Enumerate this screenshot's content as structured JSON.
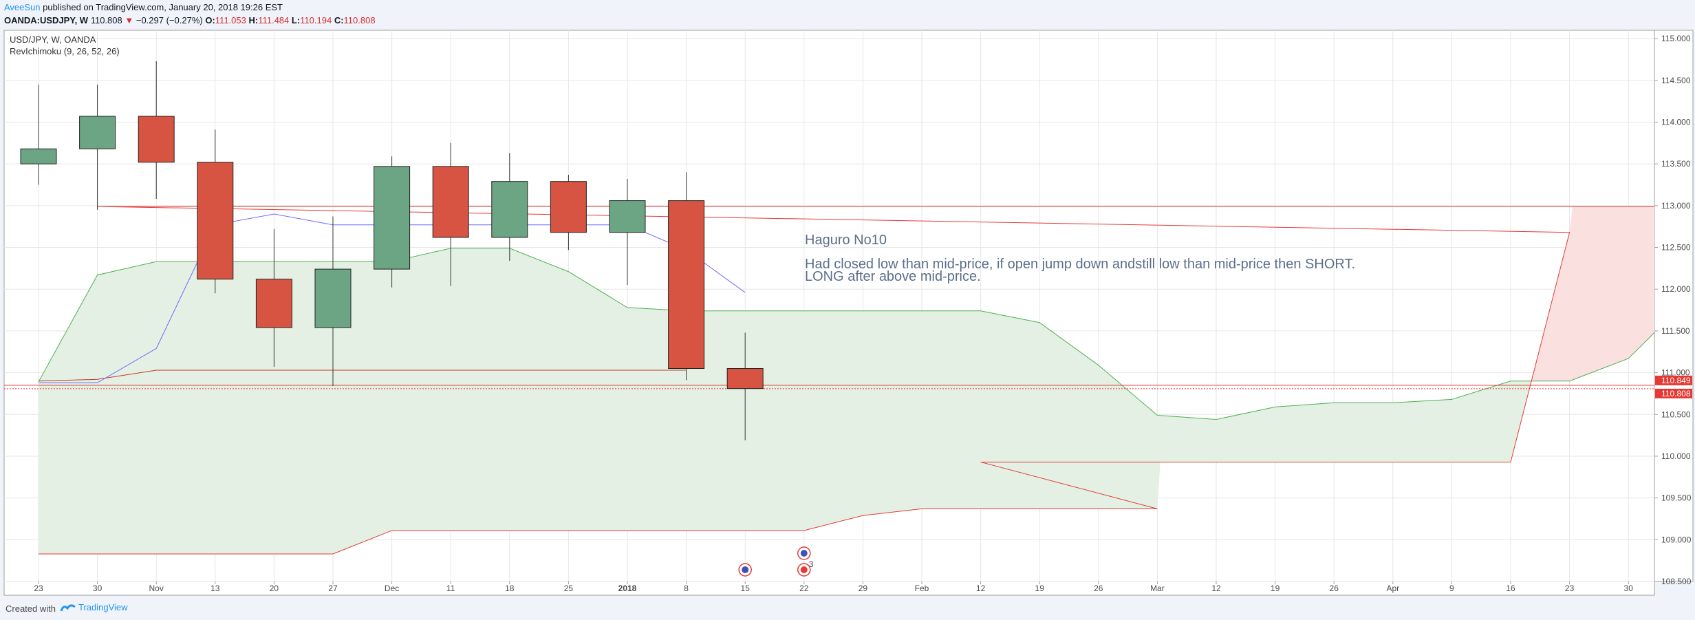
{
  "header": {
    "author": "AveeSun",
    "published_text": "published on TradingView.com, January 20, 2018 19:26 EST",
    "symbol": "OANDA:USDJPY, W",
    "last_price": "110.808",
    "change": "−0.297 (−0.27%)",
    "o_label": "O:",
    "o_value": "111.053",
    "h_label": "H:",
    "h_value": "111.484",
    "l_label": "L:",
    "l_value": "110.194",
    "c_label": "C:",
    "c_value": "110.808"
  },
  "footer": {
    "created_with": "Created with",
    "brand": "TradingView"
  },
  "chart_data": {
    "type": "candlestick",
    "legend": [
      "USD/JPY, W, OANDA",
      "RevIchimoku (9, 26, 52, 26)"
    ],
    "x_tick_labels": [
      "23",
      "30",
      "Nov",
      "13",
      "20",
      "27",
      "Dec",
      "11",
      "18",
      "25",
      "2018",
      "8",
      "15",
      "22",
      "29",
      "Feb",
      "12",
      "19",
      "26",
      "Mar",
      "12",
      "19",
      "26",
      "Apr",
      "9",
      "16",
      "23",
      "30"
    ],
    "y_ticks": [
      115.0,
      114.5,
      114.0,
      113.5,
      113.0,
      112.5,
      112.0,
      111.5,
      111.0,
      110.5,
      110.0,
      109.5,
      109.0,
      108.5
    ],
    "y_range": [
      108.5,
      115.1
    ],
    "candles": [
      {
        "x": "23",
        "o": 113.5,
        "h": 114.45,
        "l": 113.25,
        "c": 113.68
      },
      {
        "x": "30",
        "o": 113.68,
        "h": 114.45,
        "l": 112.95,
        "c": 114.07
      },
      {
        "x": "Nov",
        "o": 114.07,
        "h": 114.73,
        "l": 113.08,
        "c": 113.52
      },
      {
        "x": "13",
        "o": 113.52,
        "h": 113.91,
        "l": 111.95,
        "c": 112.12
      },
      {
        "x": "20",
        "o": 112.12,
        "h": 112.72,
        "l": 111.07,
        "c": 111.54
      },
      {
        "x": "27",
        "o": 111.54,
        "h": 112.87,
        "l": 110.84,
        "c": 112.24
      },
      {
        "x": "Dec",
        "o": 112.24,
        "h": 113.59,
        "l": 112.02,
        "c": 113.47
      },
      {
        "x": "11",
        "o": 113.47,
        "h": 113.75,
        "l": 112.04,
        "c": 112.62
      },
      {
        "x": "18",
        "o": 112.62,
        "h": 113.63,
        "l": 112.34,
        "c": 113.29
      },
      {
        "x": "25",
        "o": 113.29,
        "h": 113.37,
        "l": 112.47,
        "c": 112.68
      },
      {
        "x": "2018",
        "o": 112.68,
        "h": 113.32,
        "l": 112.05,
        "c": 113.06
      },
      {
        "x": "8",
        "o": 113.06,
        "h": 113.4,
        "l": 110.91,
        "c": 111.05
      },
      {
        "x": "15",
        "o": 111.05,
        "h": 111.48,
        "l": 110.19,
        "c": 110.81
      }
    ],
    "conversion_line": [
      {
        "x": "23",
        "y": 110.88
      },
      {
        "x": "30",
        "y": 110.88
      },
      {
        "x": "Nov",
        "y": 111.29
      },
      {
        "x": "13",
        "y": 112.77
      },
      {
        "x": "20",
        "y": 112.9
      },
      {
        "x": "27",
        "y": 112.77
      },
      {
        "x": "Dec",
        "y": 112.77
      },
      {
        "x": "11",
        "y": 112.77
      },
      {
        "x": "18",
        "y": 112.77
      },
      {
        "x": "25",
        "y": 112.77
      },
      {
        "x": "2018",
        "y": 112.77
      },
      {
        "x": "8",
        "y": 112.47
      },
      {
        "x": "15",
        "y": 111.96
      }
    ],
    "base_line": [
      {
        "x": "23",
        "y": 110.9
      },
      {
        "x": "30",
        "y": 110.92
      },
      {
        "x": "Nov",
        "y": 111.03
      },
      {
        "x": "8",
        "y": 111.03
      }
    ],
    "cloud_span_a": [
      {
        "x": "23",
        "y": 110.89
      },
      {
        "x": "30",
        "y": 112.17
      },
      {
        "x": "Nov",
        "y": 112.33
      },
      {
        "x": "13",
        "y": 112.33
      },
      {
        "x": "27",
        "y": 112.33
      },
      {
        "x": "Dec",
        "y": 112.33
      },
      {
        "x": "11",
        "y": 112.49
      },
      {
        "x": "18",
        "y": 112.49
      },
      {
        "x": "25",
        "y": 112.21
      },
      {
        "x": "2018",
        "y": 111.78
      },
      {
        "x": "8",
        "y": 111.74
      },
      {
        "x": "12",
        "y": 111.74
      },
      {
        "x": "19",
        "y": 111.6
      },
      {
        "x": "26",
        "y": 111.09
      },
      {
        "x": "Mar",
        "y": 110.49
      },
      {
        "x": "12",
        "y": 110.44
      },
      {
        "x": "19",
        "y": 110.59
      },
      {
        "x": "26",
        "y": 110.64
      },
      {
        "x": "Apr",
        "y": 110.64
      },
      {
        "x": "9",
        "y": 110.68
      },
      {
        "x": "16",
        "y": 110.9
      },
      {
        "x": "23",
        "y": 110.9
      },
      {
        "x": "30",
        "y": 111.17
      },
      {
        "x": "end",
        "y": 111.48
      }
    ],
    "cloud_span_b": [
      {
        "x": "23",
        "y": 108.83
      },
      {
        "x": "27",
        "y": 108.83
      },
      {
        "x": "Dec",
        "y": 109.11
      },
      {
        "x": "22",
        "y": 109.11
      },
      {
        "x": "29",
        "y": 109.29
      },
      {
        "x": "Feb",
        "y": 109.37
      },
      {
        "x": "Mar",
        "y": 109.37
      },
      {
        "x": "12",
        "y": 109.93
      },
      {
        "x": "16",
        "y": 109.93
      },
      {
        "x": "23",
        "y": 112.68
      },
      {
        "x": "30",
        "y": 112.99
      },
      {
        "x": "end",
        "y": 112.99
      }
    ],
    "horizontal_lines": [
      110.849,
      110.808
    ],
    "price_labels": [
      {
        "text": "110.849",
        "value": 110.849
      },
      {
        "text": "110.808",
        "value": 110.808
      }
    ],
    "annotation": {
      "title": "Haguro No10",
      "line1": "Had closed low than mid-price, if open jump down andstill low than mid-price then SHORT.",
      "line2": "LONG after above mid-price."
    },
    "event_badges": [
      "15",
      "22",
      "22"
    ],
    "event_count": "3",
    "colors": {
      "bull": "#6ba583",
      "bear": "#d75442",
      "conversion": "#6b6bff",
      "base": "#c0392b",
      "span_a": "#4caf50",
      "span_b": "#e53935",
      "cloud_bull": "#e3f0e3",
      "cloud_bear": "#fbe0e0",
      "price_label": "#e53935",
      "grid": "#e6e6e6"
    }
  }
}
